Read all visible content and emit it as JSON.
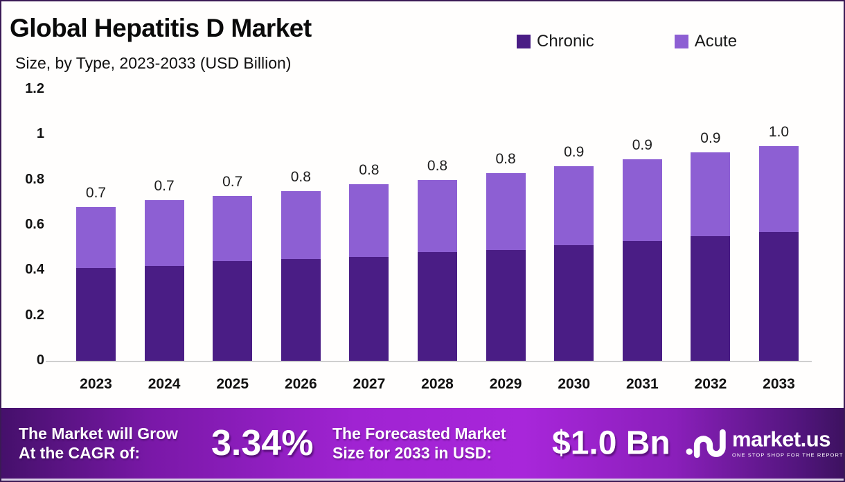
{
  "header": {
    "title": "Global Hepatitis D Market",
    "subtitle": "Size, by Type, 2023-2033 (USD Billion)"
  },
  "legend": {
    "items": [
      {
        "label": "Chronic",
        "color": "#4a1d85"
      },
      {
        "label": "Acute",
        "color": "#8d5fd3"
      }
    ]
  },
  "chart_data": {
    "type": "bar",
    "stacked": true,
    "title": "Global Hepatitis D Market Size, by Type, 2023-2033 (USD Billion)",
    "categories": [
      "2023",
      "2024",
      "2025",
      "2026",
      "2027",
      "2028",
      "2029",
      "2030",
      "2031",
      "2032",
      "2033"
    ],
    "series": [
      {
        "name": "Chronic",
        "color": "#4a1d85",
        "values": [
          0.41,
          0.42,
          0.44,
          0.45,
          0.46,
          0.48,
          0.49,
          0.51,
          0.53,
          0.55,
          0.57
        ]
      },
      {
        "name": "Acute",
        "color": "#8d5fd3",
        "values": [
          0.27,
          0.29,
          0.29,
          0.3,
          0.32,
          0.32,
          0.34,
          0.35,
          0.36,
          0.37,
          0.38
        ]
      }
    ],
    "totals": [
      0.68,
      0.71,
      0.73,
      0.75,
      0.78,
      0.8,
      0.83,
      0.86,
      0.89,
      0.92,
      0.95
    ],
    "total_labels": [
      "0.7",
      "0.7",
      "0.7",
      "0.8",
      "0.8",
      "0.8",
      "0.8",
      "0.9",
      "0.9",
      "0.9",
      "1.0"
    ],
    "y_ticks": [
      "1.2",
      "1",
      "0.8",
      "0.6",
      "0.4",
      "0.2",
      "0"
    ],
    "ylim": [
      0,
      1.2
    ],
    "xlabel": "",
    "ylabel": "",
    "grid": false,
    "legend_position": "top-right"
  },
  "footer": {
    "cagr_label_line1": "The Market will Grow",
    "cagr_label_line2": "At the CAGR of:",
    "cagr_value": "3.34%",
    "forecast_label_line1": "The Forecasted Market",
    "forecast_label_line2": "Size for 2033 in USD:",
    "forecast_value": "$1.0 Bn",
    "brand_name": "market.us",
    "brand_tagline": "ONE STOP SHOP FOR THE REPORTS"
  },
  "colors": {
    "chronic": "#4a1d85",
    "acute": "#8d5fd3",
    "frame_border": "#3b1a55",
    "footer_gradient_mid": "#a826da",
    "footer_gradient_edge": "#45106b",
    "baseline": "#cfcfcf"
  }
}
